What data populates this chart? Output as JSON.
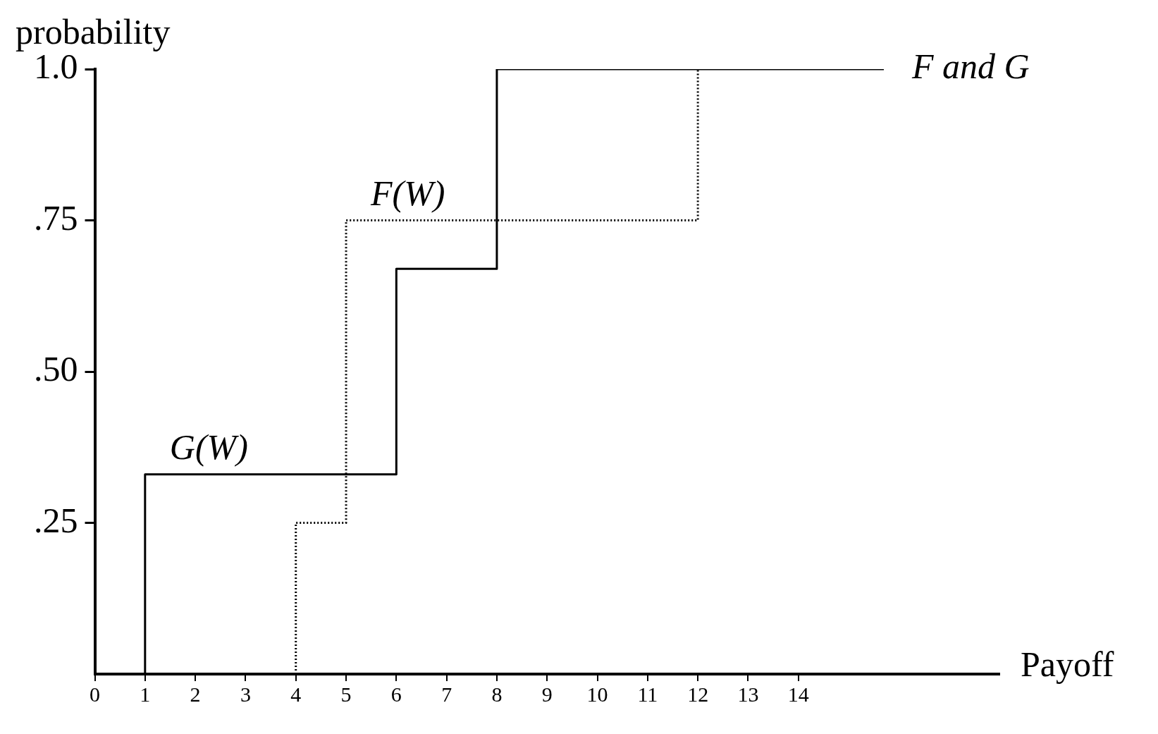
{
  "chart_data": {
    "type": "step",
    "xlabel": "Payoff",
    "ylabel": "probability",
    "xlim": [
      0,
      18
    ],
    "xticks": [
      0,
      1,
      2,
      3,
      4,
      5,
      6,
      7,
      8,
      9,
      10,
      11,
      12,
      13,
      14
    ],
    "ylim": [
      0,
      1.0
    ],
    "yticks": [
      {
        "value": 0.25,
        "label": ".25"
      },
      {
        "value": 0.5,
        "label": ".50"
      },
      {
        "value": 0.75,
        "label": ".75"
      },
      {
        "value": 1.0,
        "label": "1.0"
      }
    ],
    "grid": false,
    "legend": false,
    "marker": "none",
    "series": [
      {
        "name": "G(W)",
        "color": "#000000",
        "line_style": "solid",
        "x": [
          1,
          1,
          6,
          8,
          15.7
        ],
        "values": [
          0,
          0.33,
          0.67,
          1,
          1
        ]
      },
      {
        "name": "F(W)",
        "color": "#000000",
        "line_style": "dotted",
        "x": [
          4,
          4,
          5,
          12
        ],
        "values": [
          0,
          0.25,
          0.75,
          1
        ]
      }
    ],
    "annotations": [
      "F and G"
    ]
  }
}
